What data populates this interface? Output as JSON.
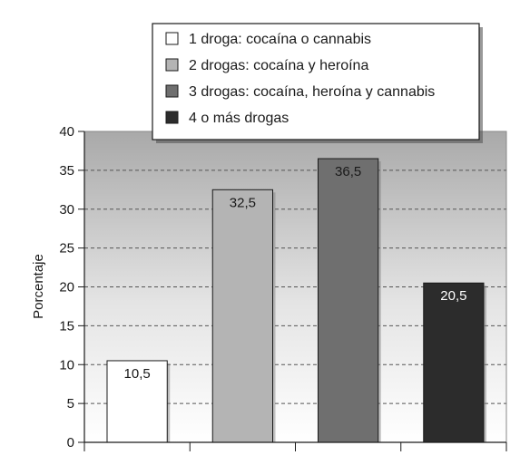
{
  "chart_data": {
    "type": "bar",
    "categories": [
      "1 droga: cocaína o cannabis",
      "2 drogas: cocaína y heroína",
      "3 drogas: cocaína, heroína y cannabis",
      "4 o más drogas"
    ],
    "values": [
      10.5,
      32.5,
      36.5,
      20.5
    ],
    "value_labels": [
      "10,5",
      "32,5",
      "36,5",
      "20,5"
    ],
    "bar_colors": [
      "#ffffff",
      "#b4b4b4",
      "#6f6f6f",
      "#2c2c2c"
    ],
    "value_label_colors": [
      "#1a1a1a",
      "#1a1a1a",
      "#1a1a1a",
      "#ffffff"
    ],
    "title": "",
    "xlabel": "",
    "ylabel": "Porcentaje",
    "ylim": [
      0,
      40
    ],
    "yticks": [
      0,
      5,
      10,
      15,
      20,
      25,
      30,
      35,
      40
    ],
    "grid": true,
    "legend_position": "top-right"
  }
}
